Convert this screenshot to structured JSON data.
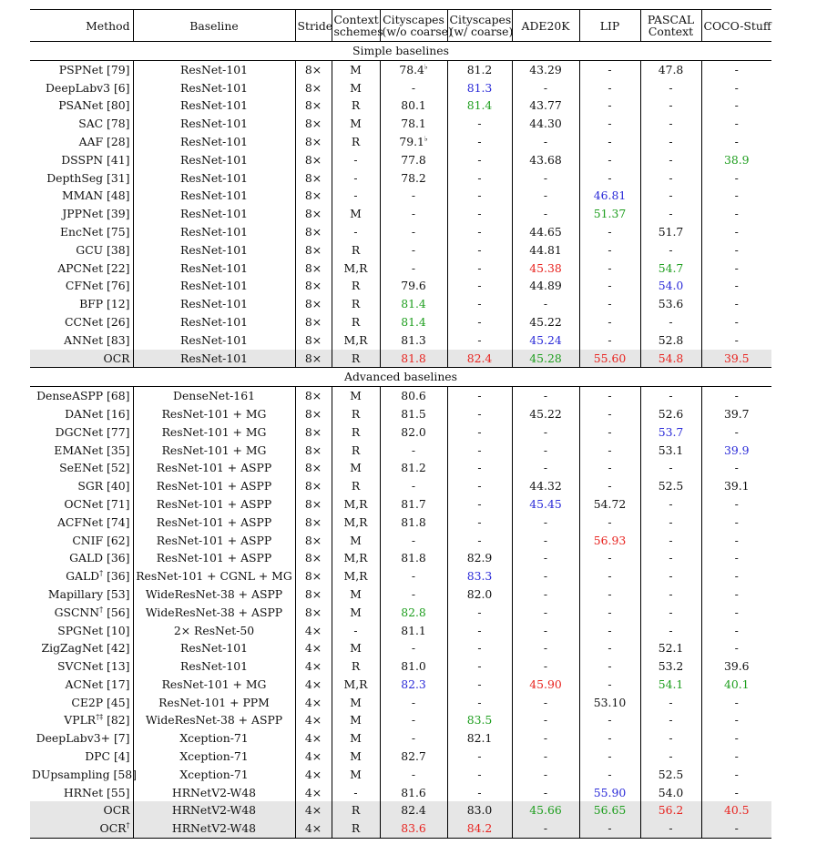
{
  "columns": [
    {
      "key": "method",
      "label": "Method"
    },
    {
      "key": "baseline",
      "label": "Baseline"
    },
    {
      "key": "stride",
      "label": "Stride"
    },
    {
      "key": "context",
      "label": "Context schemes",
      "line1": "Context",
      "line2": "schemes"
    },
    {
      "key": "cs_wo",
      "label": "Cityscapes (w/o coarse)",
      "line1": "Cityscapes",
      "line2": "(w/o coarse)"
    },
    {
      "key": "cs_w",
      "label": "Cityscapes (w/ coarse)",
      "line1": "Cityscapes",
      "line2": "(w/ coarse)"
    },
    {
      "key": "ade",
      "label": "ADE20K"
    },
    {
      "key": "lip",
      "label": "LIP"
    },
    {
      "key": "pascal",
      "label": "PASCAL Context",
      "line1": "PASCAL",
      "line2": "Context"
    },
    {
      "key": "coco",
      "label": "COCO-Stuff"
    }
  ],
  "color_legend": {
    "red": "#e8231f",
    "blue": "#2a2ad8",
    "green": "#1e9e1e",
    "highlight_bg": "#e6e6e6"
  },
  "sections": [
    {
      "title": "Simple baselines",
      "rows": [
        {
          "method": "PSPNet [79]",
          "baseline": "ResNet-101",
          "stride": "8×",
          "context": "M",
          "cs_wo": {
            "v": "78.4",
            "sup": "♭"
          },
          "cs_w": "81.2",
          "ade": "43.29",
          "lip": "-",
          "pascal": "47.8",
          "coco": "-"
        },
        {
          "method": "DeepLabv3 [6]",
          "baseline": "ResNet-101",
          "stride": "8×",
          "context": "M",
          "cs_wo": "-",
          "cs_w": {
            "v": "81.3",
            "c": "blue"
          },
          "ade": "-",
          "lip": "-",
          "pascal": "-",
          "coco": "-"
        },
        {
          "method": "PSANet [80]",
          "baseline": "ResNet-101",
          "stride": "8×",
          "context": "R",
          "cs_wo": "80.1",
          "cs_w": {
            "v": "81.4",
            "c": "green"
          },
          "ade": "43.77",
          "lip": "-",
          "pascal": "-",
          "coco": "-"
        },
        {
          "method": "SAC [78]",
          "baseline": "ResNet-101",
          "stride": "8×",
          "context": "M",
          "cs_wo": "78.1",
          "cs_w": "-",
          "ade": "44.30",
          "lip": "-",
          "pascal": "-",
          "coco": "-"
        },
        {
          "method": "AAF [28]",
          "baseline": "ResNet-101",
          "stride": "8×",
          "context": "R",
          "cs_wo": {
            "v": "79.1",
            "sup": "♭"
          },
          "cs_w": "-",
          "ade": "-",
          "lip": "-",
          "pascal": "-",
          "coco": "-"
        },
        {
          "method": "DSSPN [41]",
          "baseline": "ResNet-101",
          "stride": "8×",
          "context": "-",
          "cs_wo": "77.8",
          "cs_w": "-",
          "ade": "43.68",
          "lip": "-",
          "pascal": "-",
          "coco": {
            "v": "38.9",
            "c": "green"
          }
        },
        {
          "method": "DepthSeg [31]",
          "baseline": "ResNet-101",
          "stride": "8×",
          "context": "-",
          "cs_wo": "78.2",
          "cs_w": "-",
          "ade": "-",
          "lip": "-",
          "pascal": "-",
          "coco": "-"
        },
        {
          "method": "MMAN [48]",
          "baseline": "ResNet-101",
          "stride": "8×",
          "context": "-",
          "cs_wo": "-",
          "cs_w": "-",
          "ade": "-",
          "lip": {
            "v": "46.81",
            "c": "blue"
          },
          "pascal": "-",
          "coco": "-"
        },
        {
          "method": "JPPNet [39]",
          "baseline": "ResNet-101",
          "stride": "8×",
          "context": "M",
          "cs_wo": "-",
          "cs_w": "-",
          "ade": "-",
          "lip": {
            "v": "51.37",
            "c": "green"
          },
          "pascal": "-",
          "coco": "-"
        },
        {
          "method": "EncNet [75]",
          "baseline": "ResNet-101",
          "stride": "8×",
          "context": "-",
          "cs_wo": "-",
          "cs_w": "-",
          "ade": "44.65",
          "lip": "-",
          "pascal": "51.7",
          "coco": "-"
        },
        {
          "method": "GCU [38]",
          "baseline": "ResNet-101",
          "stride": "8×",
          "context": "R",
          "cs_wo": "-",
          "cs_w": "-",
          "ade": "44.81",
          "lip": "-",
          "pascal": "-",
          "coco": "-"
        },
        {
          "method": "APCNet [22]",
          "baseline": "ResNet-101",
          "stride": "8×",
          "context": "M,R",
          "cs_wo": "-",
          "cs_w": "-",
          "ade": {
            "v": "45.38",
            "c": "red"
          },
          "lip": "-",
          "pascal": {
            "v": "54.7",
            "c": "green"
          },
          "coco": "-"
        },
        {
          "method": "CFNet [76]",
          "baseline": "ResNet-101",
          "stride": "8×",
          "context": "R",
          "cs_wo": "79.6",
          "cs_w": "-",
          "ade": "44.89",
          "lip": "-",
          "pascal": {
            "v": "54.0",
            "c": "blue"
          },
          "coco": "-"
        },
        {
          "method": "BFP [12]",
          "baseline": "ResNet-101",
          "stride": "8×",
          "context": "R",
          "cs_wo": {
            "v": "81.4",
            "c": "green"
          },
          "cs_w": "-",
          "ade": "-",
          "lip": "-",
          "pascal": "53.6",
          "coco": "-"
        },
        {
          "method": "CCNet [26]",
          "baseline": "ResNet-101",
          "stride": "8×",
          "context": "R",
          "cs_wo": {
            "v": "81.4",
            "c": "green"
          },
          "cs_w": "-",
          "ade": "45.22",
          "lip": "-",
          "pascal": "-",
          "coco": "-"
        },
        {
          "method": "ANNet [83]",
          "baseline": "ResNet-101",
          "stride": "8×",
          "context": "M,R",
          "cs_wo": "81.3",
          "cs_w": "-",
          "ade": {
            "v": "45.24",
            "c": "blue"
          },
          "lip": "-",
          "pascal": "52.8",
          "coco": "-"
        },
        {
          "method": "OCR",
          "baseline": "ResNet-101",
          "stride": "8×",
          "context": "R",
          "cs_wo": {
            "v": "81.8",
            "c": "red"
          },
          "cs_w": {
            "v": "82.4",
            "c": "red"
          },
          "ade": {
            "v": "45.28",
            "c": "green"
          },
          "lip": {
            "v": "55.60",
            "c": "red"
          },
          "pascal": {
            "v": "54.8",
            "c": "red"
          },
          "coco": {
            "v": "39.5",
            "c": "red"
          },
          "highlight": true
        }
      ]
    },
    {
      "title": "Advanced baselines",
      "rows": [
        {
          "method": "DenseASPP [68]",
          "baseline": "DenseNet-161",
          "stride": "8×",
          "context": "M",
          "cs_wo": "80.6",
          "cs_w": "-",
          "ade": "-",
          "lip": "-",
          "pascal": "-",
          "coco": "-"
        },
        {
          "method": "DANet [16]",
          "baseline": "ResNet-101 + MG",
          "stride": "8×",
          "context": "R",
          "cs_wo": "81.5",
          "cs_w": "-",
          "ade": "45.22",
          "lip": "-",
          "pascal": "52.6",
          "coco": "39.7"
        },
        {
          "method": "DGCNet [77]",
          "baseline": "ResNet-101 + MG",
          "stride": "8×",
          "context": "R",
          "cs_wo": "82.0",
          "cs_w": "-",
          "ade": "-",
          "lip": "-",
          "pascal": {
            "v": "53.7",
            "c": "blue"
          },
          "coco": "-"
        },
        {
          "method": "EMANet [35]",
          "baseline": "ResNet-101 + MG",
          "stride": "8×",
          "context": "R",
          "cs_wo": "-",
          "cs_w": "-",
          "ade": "-",
          "lip": "-",
          "pascal": "53.1",
          "coco": {
            "v": "39.9",
            "c": "blue"
          }
        },
        {
          "method": "SeENet [52]",
          "baseline": "ResNet-101 + ASPP",
          "stride": "8×",
          "context": "M",
          "cs_wo": "81.2",
          "cs_w": "-",
          "ade": "-",
          "lip": "-",
          "pascal": "-",
          "coco": "-"
        },
        {
          "method": "SGR [40]",
          "baseline": "ResNet-101 + ASPP",
          "stride": "8×",
          "context": "R",
          "cs_wo": "-",
          "cs_w": "-",
          "ade": "44.32",
          "lip": "-",
          "pascal": "52.5",
          "coco": "39.1"
        },
        {
          "method": "OCNet [71]",
          "baseline": "ResNet-101 + ASPP",
          "stride": "8×",
          "context": "M,R",
          "cs_wo": "81.7",
          "cs_w": "-",
          "ade": {
            "v": "45.45",
            "c": "blue"
          },
          "lip": "54.72",
          "pascal": "-",
          "coco": "-"
        },
        {
          "method": "ACFNet [74]",
          "baseline": "ResNet-101 + ASPP",
          "stride": "8×",
          "context": "M,R",
          "cs_wo": "81.8",
          "cs_w": "-",
          "ade": "-",
          "lip": "-",
          "pascal": "-",
          "coco": "-"
        },
        {
          "method": "CNIF [62]",
          "baseline": "ResNet-101 + ASPP",
          "stride": "8×",
          "context": "M",
          "cs_wo": "-",
          "cs_w": "-",
          "ade": "-",
          "lip": {
            "v": "56.93",
            "c": "red"
          },
          "pascal": "-",
          "coco": "-"
        },
        {
          "method": "GALD [36]",
          "baseline": "ResNet-101 + ASPP",
          "stride": "8×",
          "context": "M,R",
          "cs_wo": "81.8",
          "cs_w": "82.9",
          "ade": "-",
          "lip": "-",
          "pascal": "-",
          "coco": "-"
        },
        {
          "method": "GALD",
          "method_sup": "†",
          "method_ref": " [36]",
          "baseline": "ResNet-101 + CGNL + MG",
          "stride": "8×",
          "context": "M,R",
          "cs_wo": "-",
          "cs_w": {
            "v": "83.3",
            "c": "blue"
          },
          "ade": "-",
          "lip": "-",
          "pascal": "-",
          "coco": "-"
        },
        {
          "method": "Mapillary [53]",
          "baseline": "WideResNet-38 + ASPP",
          "stride": "8×",
          "context": "M",
          "cs_wo": "-",
          "cs_w": "82.0",
          "ade": "-",
          "lip": "-",
          "pascal": "-",
          "coco": "-"
        },
        {
          "method": "GSCNN",
          "method_sup": "†",
          "method_ref": " [56]",
          "baseline": "WideResNet-38 + ASPP",
          "stride": "8×",
          "context": "M",
          "cs_wo": {
            "v": "82.8",
            "c": "green"
          },
          "cs_w": "-",
          "ade": "-",
          "lip": "-",
          "pascal": "-",
          "coco": "-"
        },
        {
          "method": "SPGNet [10]",
          "baseline": "2× ResNet-50",
          "stride": "4×",
          "context": "-",
          "cs_wo": "81.1",
          "cs_w": "-",
          "ade": "-",
          "lip": "-",
          "pascal": "-",
          "coco": "-"
        },
        {
          "method": "ZigZagNet [42]",
          "baseline": "ResNet-101",
          "stride": "4×",
          "context": "M",
          "cs_wo": "-",
          "cs_w": "-",
          "ade": "-",
          "lip": "-",
          "pascal": "52.1",
          "coco": "-"
        },
        {
          "method": "SVCNet [13]",
          "baseline": "ResNet-101",
          "stride": "4×",
          "context": "R",
          "cs_wo": "81.0",
          "cs_w": "-",
          "ade": "-",
          "lip": "-",
          "pascal": "53.2",
          "coco": "39.6"
        },
        {
          "method": "ACNet [17]",
          "baseline": "ResNet-101 + MG",
          "stride": "4×",
          "context": "M,R",
          "cs_wo": {
            "v": "82.3",
            "c": "blue"
          },
          "cs_w": "-",
          "ade": {
            "v": "45.90",
            "c": "red"
          },
          "lip": "-",
          "pascal": {
            "v": "54.1",
            "c": "green"
          },
          "coco": {
            "v": "40.1",
            "c": "green"
          }
        },
        {
          "method": "CE2P [45]",
          "baseline": "ResNet-101 + PPM",
          "stride": "4×",
          "context": "M",
          "cs_wo": "-",
          "cs_w": "-",
          "ade": "-",
          "lip": "53.10",
          "pascal": "-",
          "coco": "-"
        },
        {
          "method": "VPLR",
          "method_sup": "†‡",
          "method_ref": " [82]",
          "baseline": "WideResNet-38 + ASPP",
          "stride": "4×",
          "context": "M",
          "cs_wo": "-",
          "cs_w": {
            "v": "83.5",
            "c": "green"
          },
          "ade": "-",
          "lip": "-",
          "pascal": "-",
          "coco": "-"
        },
        {
          "method": "DeepLabv3+ [7]",
          "baseline": "Xception-71",
          "stride": "4×",
          "context": "M",
          "cs_wo": "-",
          "cs_w": "82.1",
          "ade": "-",
          "lip": "-",
          "pascal": "-",
          "coco": "-"
        },
        {
          "method": "DPC [4]",
          "baseline": "Xception-71",
          "stride": "4×",
          "context": "M",
          "cs_wo": "82.7",
          "cs_w": "-",
          "ade": "-",
          "lip": "-",
          "pascal": "-",
          "coco": "-"
        },
        {
          "method": "DUpsampling [58]",
          "baseline": "Xception-71",
          "stride": "4×",
          "context": "M",
          "cs_wo": "-",
          "cs_w": "-",
          "ade": "-",
          "lip": "-",
          "pascal": "52.5",
          "coco": "-"
        },
        {
          "method": "HRNet [55]",
          "baseline": "HRNetV2-W48",
          "stride": "4×",
          "context": "-",
          "cs_wo": "81.6",
          "cs_w": "-",
          "ade": "-",
          "lip": {
            "v": "55.90",
            "c": "blue"
          },
          "pascal": "54.0",
          "coco": "-"
        },
        {
          "method": "OCR",
          "baseline": "HRNetV2-W48",
          "stride": "4×",
          "context": "R",
          "cs_wo": "82.4",
          "cs_w": "83.0",
          "ade": {
            "v": "45.66",
            "c": "green"
          },
          "lip": {
            "v": "56.65",
            "c": "green"
          },
          "pascal": {
            "v": "56.2",
            "c": "red"
          },
          "coco": {
            "v": "40.5",
            "c": "red"
          },
          "highlight": true
        },
        {
          "method": "OCR",
          "method_sup": "†",
          "baseline": "HRNetV2-W48",
          "stride": "4×",
          "context": "R",
          "cs_wo": {
            "v": "83.6",
            "c": "red"
          },
          "cs_w": {
            "v": "84.2",
            "c": "red"
          },
          "ade": "-",
          "lip": "-",
          "pascal": "-",
          "coco": "-",
          "highlight": true
        }
      ]
    }
  ]
}
